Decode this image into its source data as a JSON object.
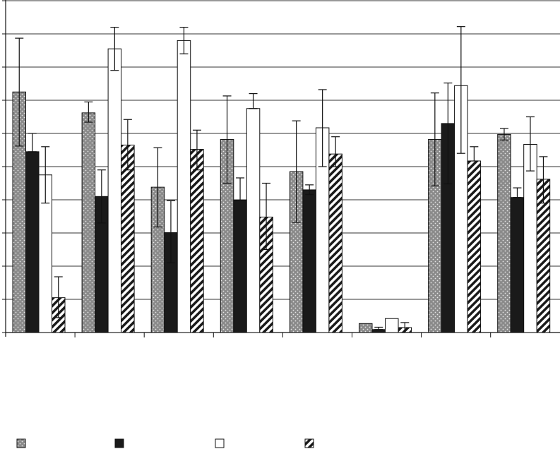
{
  "chart_data": {
    "type": "bar",
    "title": "",
    "xlabel": "",
    "ylabel": "",
    "ylim": [
      0,
      10
    ],
    "y_tick_step": 1,
    "grid": true,
    "legend_position": "bottom",
    "categories": [
      "",
      "",
      "",
      "",
      "",
      "",
      "",
      ""
    ],
    "series": [
      {
        "pattern": "dotted-gray",
        "fill": "#8a8a8a",
        "values": [
          7.25,
          6.62,
          4.38,
          5.82,
          4.85,
          0.27,
          5.82,
          5.97
        ],
        "err_low": [
          5.62,
          6.34,
          3.18,
          4.5,
          3.32,
          0.27,
          4.42,
          5.8
        ],
        "err_high": [
          8.87,
          6.95,
          5.57,
          7.13,
          6.38,
          0.27,
          7.22,
          6.15
        ]
      },
      {
        "pattern": "solid-black",
        "fill": "#1a1a1a",
        "values": [
          5.45,
          4.1,
          3.01,
          3.99,
          4.3,
          0.09,
          6.3,
          4.07
        ],
        "err_low": [
          5.45,
          3.3,
          2.1,
          3.99,
          4.16,
          0.09,
          4.48,
          4.07
        ],
        "err_high": [
          6.0,
          4.9,
          3.97,
          4.66,
          4.45,
          0.16,
          7.52,
          4.36
        ]
      },
      {
        "pattern": "white",
        "fill": "#ffffff",
        "values": [
          4.75,
          8.55,
          8.8,
          6.75,
          6.17,
          0.42,
          7.44,
          5.67
        ],
        "err_low": [
          3.9,
          7.9,
          8.4,
          6.75,
          5.0,
          0.42,
          5.4,
          4.87
        ],
        "err_high": [
          5.6,
          9.2,
          9.2,
          7.2,
          7.32,
          0.42,
          9.22,
          6.5
        ]
      },
      {
        "pattern": "hatched",
        "fill": "#ffffff",
        "values": [
          1.05,
          5.65,
          5.52,
          3.48,
          5.38,
          0.15,
          5.17,
          4.62
        ],
        "err_low": [
          0.45,
          4.9,
          4.9,
          2.5,
          5.0,
          0.0,
          5.17,
          3.9
        ],
        "err_high": [
          1.68,
          6.42,
          6.1,
          4.5,
          5.9,
          0.3,
          5.6,
          5.3
        ]
      }
    ],
    "legend": [
      {
        "name": "",
        "pattern": "dotted-gray"
      },
      {
        "name": "",
        "pattern": "solid-black"
      },
      {
        "name": "",
        "pattern": "white"
      },
      {
        "name": "",
        "pattern": "hatched"
      }
    ]
  }
}
